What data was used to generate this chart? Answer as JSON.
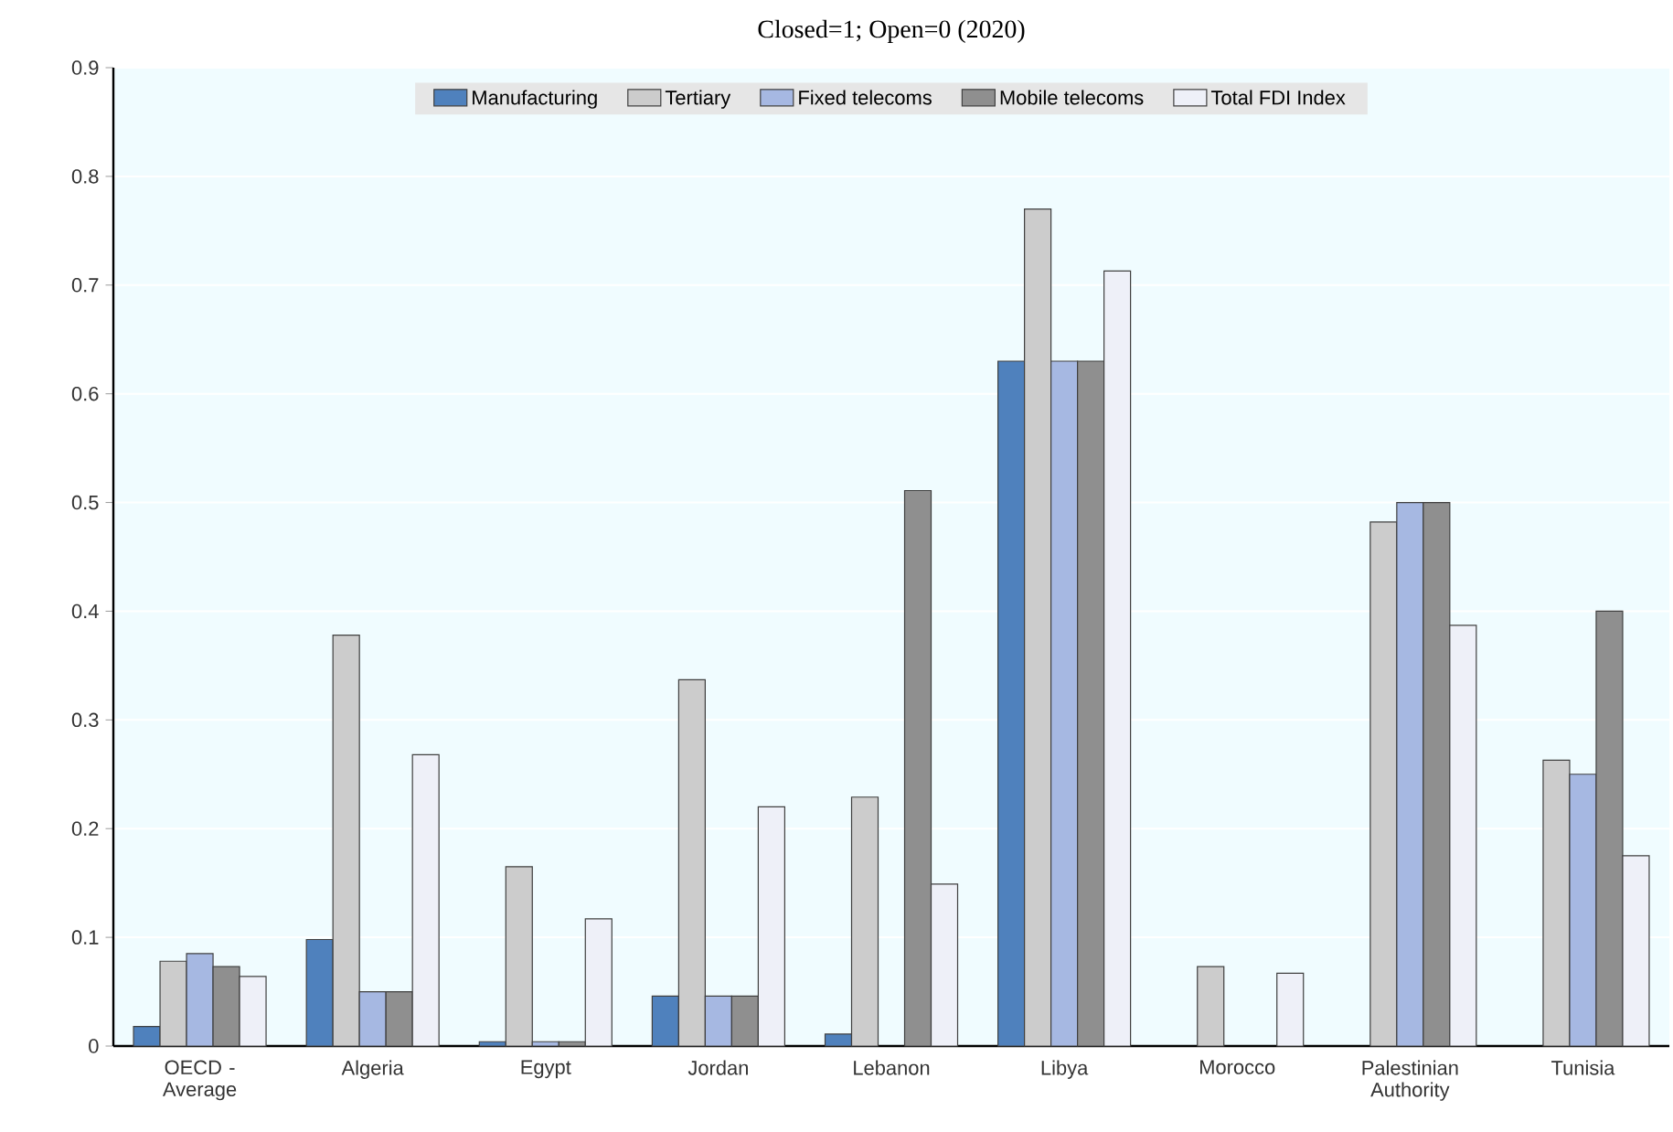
{
  "chart_data": {
    "type": "bar",
    "title": "Closed=1; Open=0 (2020)",
    "categories": [
      "OECD - Average",
      "Algeria",
      "Egypt",
      "Jordan",
      "Lebanon",
      "Libya",
      "Morocco",
      "Palestinian Authority",
      "Tunisia"
    ],
    "series": [
      {
        "name": "Manufacturing",
        "color": "#4f81bd",
        "values": [
          0.018,
          0.098,
          0.004,
          0.046,
          0.011,
          0.63,
          null,
          null,
          null
        ]
      },
      {
        "name": "Tertiary",
        "color": "#cccccc",
        "values": [
          0.078,
          0.378,
          0.165,
          0.337,
          0.229,
          0.77,
          0.073,
          0.482,
          0.263
        ]
      },
      {
        "name": "Fixed telecoms",
        "color": "#a6b8e2",
        "values": [
          0.085,
          0.05,
          0.004,
          0.046,
          null,
          0.63,
          null,
          0.5,
          0.25
        ]
      },
      {
        "name": "Mobile telecoms",
        "color": "#8f8f8f",
        "values": [
          0.073,
          0.05,
          0.004,
          0.046,
          0.511,
          0.63,
          null,
          0.5,
          0.4
        ]
      },
      {
        "name": "Total FDI Index",
        "color": "#eef0f8",
        "values": [
          0.064,
          0.268,
          0.117,
          0.22,
          0.149,
          0.713,
          0.067,
          0.387,
          0.175
        ]
      }
    ],
    "ylim": [
      0,
      0.9
    ],
    "yticks": [
      0,
      0.1,
      0.2,
      0.3,
      0.4,
      0.5,
      0.6,
      0.7,
      0.8,
      0.9
    ],
    "grid": "y",
    "legend": "top"
  }
}
